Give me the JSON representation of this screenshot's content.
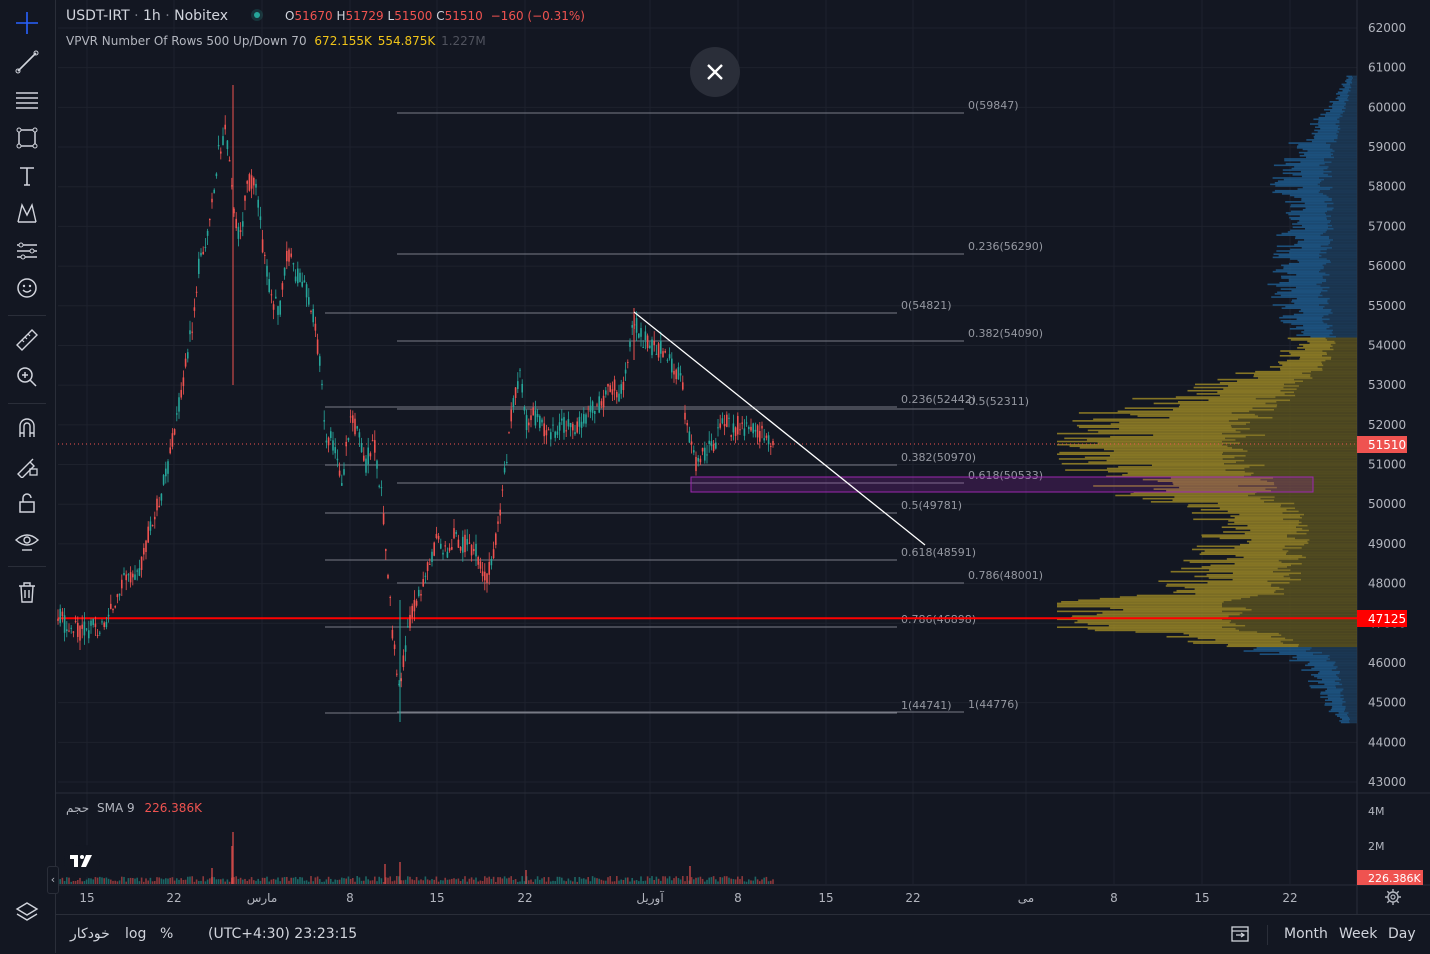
{
  "header": {
    "symbol": "USDT-IRT",
    "interval": "1h",
    "exchange": "Nobitex",
    "open_label": "O",
    "open": "51670",
    "high_label": "H",
    "high": "51729",
    "low_label": "L",
    "low": "51500",
    "close_label": "C",
    "close": "51510",
    "change": "−160 (−0.31%)"
  },
  "vpvr": {
    "label": "VPVR Number Of Rows 500 Up/Down 70",
    "up": "672.155K",
    "down": "554.875K",
    "total": "1.227M"
  },
  "volume_legend": {
    "label": "حجم",
    "sma": "SMA 9",
    "value": "226.386K"
  },
  "toolbar": {
    "icons": [
      "crosshair-icon",
      "trend-line-icon",
      "fib-lines-icon",
      "rectangle-icon",
      "text-icon",
      "pattern-icon",
      "forecast-icon",
      "emoji-icon",
      "ruler-icon",
      "zoom-in-icon",
      "magnet-icon",
      "lock-drawing-icon",
      "unlock-icon",
      "eye-icon",
      "trash-icon",
      "layers-icon"
    ]
  },
  "bottom_bar": {
    "auto": "خودکار",
    "log": "log",
    "percent": "%",
    "time": "(UTC+4:30) 23:23:15",
    "month": "Month",
    "week": "Week",
    "day": "Day"
  },
  "colors": {
    "background": "#131722",
    "up": "#26a69a",
    "down": "#ef5350",
    "red_line": "#ff0000",
    "fib": "#787b86",
    "zone": "#9c27b0",
    "vpvr_up": "#2962ff",
    "vpvr_value_area": "#b89b24"
  },
  "chart_data": {
    "type": "candlestick",
    "y_axis": {
      "ticks": [
        62000,
        61000,
        60000,
        59000,
        58000,
        57000,
        56000,
        55000,
        54000,
        53000,
        52000,
        51000,
        50000,
        49000,
        48000,
        47000,
        46000,
        45000,
        44000,
        43000
      ],
      "ylim": [
        42800,
        62600
      ],
      "last_price_label": "51510",
      "red_level_label": "47125"
    },
    "x_axis": {
      "ticks": [
        "15",
        "22",
        "مارس",
        "8",
        "15",
        "22",
        "آوریل",
        "8",
        "15",
        "22",
        "می",
        "8",
        "15",
        "22"
      ]
    },
    "price_path": [
      [
        "feb13",
        47200
      ],
      [
        "feb15",
        46700
      ],
      [
        "feb17",
        47000
      ],
      [
        "feb19",
        48200
      ],
      [
        "feb20",
        48000
      ],
      [
        "feb22",
        49500
      ],
      [
        "feb24",
        51500
      ],
      [
        "feb25",
        54000
      ],
      [
        "feb26",
        56000
      ],
      [
        "feb27",
        58500
      ],
      [
        "feb28",
        60500
      ],
      [
        "mar1",
        57500
      ],
      [
        "mar2",
        58000
      ],
      [
        "mar3",
        55000
      ],
      [
        "mar4",
        56800
      ],
      [
        "mar5",
        55500
      ],
      [
        "mar6",
        52500
      ],
      [
        "mar7",
        50500
      ],
      [
        "mar8",
        51500
      ],
      [
        "mar9",
        51000
      ],
      [
        "mar10",
        48000
      ],
      [
        "mar11",
        45000
      ],
      [
        "mar12",
        47000
      ],
      [
        "mar13",
        48800
      ],
      [
        "mar15",
        48500
      ],
      [
        "mar17",
        48500
      ],
      [
        "mar18",
        50000
      ],
      [
        "mar19",
        52500
      ],
      [
        "mar20",
        53000
      ],
      [
        "mar22",
        52200
      ],
      [
        "mar24",
        52300
      ],
      [
        "mar26",
        53000
      ],
      [
        "mar27",
        54500
      ],
      [
        "mar28",
        54600
      ],
      [
        "mar29",
        53500
      ],
      [
        "mar30",
        52000
      ],
      [
        "mar31",
        51800
      ],
      [
        "apr1",
        52000
      ],
      [
        "apr2",
        52500
      ],
      [
        "apr3",
        52300
      ],
      [
        "apr4",
        51500
      ]
    ],
    "volume_axis": {
      "ticks": [
        "4M",
        "2M"
      ],
      "last_label": "226.386K"
    },
    "drawings": {
      "fib_retracement_1": [
        {
          "label": "0(59847)"
        },
        {
          "label": "0.236(56290)"
        },
        {
          "label": "0.382(54090)"
        },
        {
          "label": "0.5(52311)"
        },
        {
          "label": "0.618(50533)"
        },
        {
          "label": "0.786(48001)"
        },
        {
          "label": "1(44776)"
        }
      ],
      "fib_retracement_2": [
        {
          "label": "0(54821)"
        },
        {
          "label": "0.236(52442)"
        },
        {
          "label": "0.382(50970)"
        },
        {
          "label": "0.5(49781)"
        },
        {
          "label": "0.618(48591)"
        },
        {
          "label": "0.786(46898)"
        },
        {
          "label": "1(44741)"
        }
      ],
      "horizontal_line": 47125,
      "trend_line": [
        [
          54900,
          "peak"
        ],
        [
          49000,
          "projection"
        ]
      ],
      "zone": [
        50350,
        50700
      ]
    }
  }
}
